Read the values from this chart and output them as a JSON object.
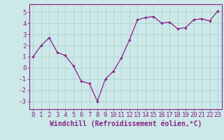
{
  "x": [
    0,
    1,
    2,
    3,
    4,
    5,
    6,
    7,
    8,
    9,
    10,
    11,
    12,
    13,
    14,
    15,
    16,
    17,
    18,
    19,
    20,
    21,
    22,
    23
  ],
  "y": [
    1,
    2,
    2.7,
    1.4,
    1.1,
    0.2,
    -1.2,
    -1.4,
    -3.0,
    -1.0,
    -0.3,
    0.9,
    2.5,
    4.3,
    4.5,
    4.6,
    4.0,
    4.1,
    3.5,
    3.6,
    4.3,
    4.4,
    4.2,
    5.1
  ],
  "line_color": "#882288",
  "marker": "D",
  "marker_size": 2.2,
  "bg_color": "#cce8e8",
  "grid_color": "#aacccc",
  "xlabel": "Windchill (Refroidissement éolien,°C)",
  "xlim": [
    -0.5,
    23.5
  ],
  "ylim": [
    -3.7,
    5.7
  ],
  "yticks": [
    -3,
    -2,
    -1,
    0,
    1,
    2,
    3,
    4,
    5
  ],
  "xticks": [
    0,
    1,
    2,
    3,
    4,
    5,
    6,
    7,
    8,
    9,
    10,
    11,
    12,
    13,
    14,
    15,
    16,
    17,
    18,
    19,
    20,
    21,
    22,
    23
  ],
  "tick_color": "#882288",
  "label_color": "#882288",
  "spine_color": "#882288",
  "font_size": 6.5,
  "xlabel_fontsize": 7.0,
  "linewidth": 0.9
}
